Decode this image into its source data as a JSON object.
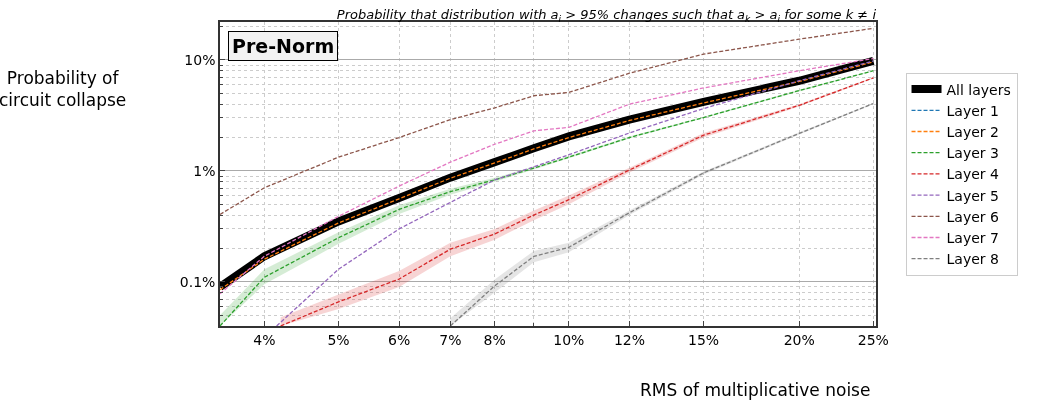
{
  "chart_data": {
    "type": "line",
    "title": "Probability that distribution with a$_{i}$ > 95% changes such that a$_{k}$ > a$_{i}$ for some k ≠ i",
    "xlabel": "RMS of multiplicative noise",
    "ylabel": "Probability of\ncircuit collapse",
    "annotations": [
      "Pre-Norm"
    ],
    "log": "xy",
    "xlim": [
      3.5,
      25.2
    ],
    "ylim": [
      0.04,
      22
    ],
    "xticks": [
      {
        "value": 4,
        "label": "4%"
      },
      {
        "value": 5,
        "label": "5%"
      },
      {
        "value": 6,
        "label": "6%"
      },
      {
        "value": 7,
        "label": "7%"
      },
      {
        "value": 8,
        "label": "8%"
      },
      {
        "value": 10,
        "label": "10%"
      },
      {
        "value": 12,
        "label": "12%"
      },
      {
        "value": 15,
        "label": "15%"
      },
      {
        "value": 20,
        "label": "20%"
      },
      {
        "value": 25,
        "label": "25%"
      }
    ],
    "yticks": [
      {
        "value": 0.1,
        "label": "0.1%"
      },
      {
        "value": 1,
        "label": "1%"
      },
      {
        "value": 10,
        "label": "10%"
      }
    ],
    "grid": true,
    "legend": "right",
    "marker": "none",
    "x": [
      3.5,
      4,
      5,
      6,
      7,
      8,
      9,
      10,
      12,
      15,
      20,
      25
    ],
    "series": [
      {
        "name": "All layers",
        "color": "#000000",
        "line_style": "solid",
        "values": [
          0.09,
          0.17,
          0.35,
          0.57,
          0.87,
          1.2,
          1.6,
          2.05,
          2.9,
          4.2,
          6.5,
          9.8
        ]
      },
      {
        "name": "Layer 1",
        "color": "#1f77b4",
        "line_style": "dashed",
        "values": [
          null,
          null,
          null,
          null,
          null,
          null,
          null,
          null,
          null,
          null,
          null,
          null
        ]
      },
      {
        "name": "Layer 2",
        "color": "#ff7f0e",
        "line_style": "dashed",
        "values": [
          0.085,
          0.16,
          0.34,
          0.56,
          0.86,
          1.18,
          1.58,
          2.0,
          2.85,
          4.1,
          6.4,
          9.6
        ]
      },
      {
        "name": "Layer 3",
        "color": "#2ca02c",
        "line_style": "dashed",
        "values": [
          0.04,
          0.11,
          0.25,
          0.45,
          0.65,
          0.83,
          1.06,
          1.33,
          2.0,
          3.03,
          5.3,
          8.0
        ],
        "lower": [
          0.04,
          0.095,
          0.22,
          0.41,
          0.61,
          0.8,
          1.03,
          1.3,
          1.96,
          2.98,
          5.2,
          7.9
        ],
        "upper": [
          0.05,
          0.13,
          0.28,
          0.49,
          0.69,
          0.87,
          1.09,
          1.36,
          2.04,
          3.08,
          5.4,
          8.1
        ]
      },
      {
        "name": "Layer 4",
        "color": "#d62728",
        "line_style": "dashed",
        "x": [
          4.2,
          5,
          6,
          7,
          8,
          9,
          10,
          12,
          15,
          20,
          25
        ],
        "values": [
          0.04,
          0.066,
          0.106,
          0.197,
          0.27,
          0.4,
          0.55,
          1.02,
          2.1,
          3.9,
          6.9
        ],
        "lower": [
          0.04,
          0.057,
          0.09,
          0.17,
          0.24,
          0.36,
          0.5,
          0.97,
          2.0,
          3.8,
          6.8
        ],
        "upper": [
          0.048,
          0.077,
          0.125,
          0.225,
          0.3,
          0.44,
          0.6,
          1.07,
          2.2,
          4.0,
          7.0
        ]
      },
      {
        "name": "Layer 5",
        "color": "#9467bd",
        "line_style": "dashed",
        "x": [
          4.15,
          5,
          6,
          7,
          8,
          9,
          10,
          12,
          15,
          20,
          25
        ],
        "values": [
          0.04,
          0.13,
          0.3,
          0.52,
          0.83,
          1.09,
          1.4,
          2.2,
          3.65,
          6.5,
          9.8
        ]
      },
      {
        "name": "Layer 6",
        "color": "#8c564b",
        "line_style": "dashed",
        "values": [
          0.405,
          0.705,
          1.33,
          2.0,
          2.9,
          3.7,
          4.76,
          5.1,
          7.6,
          11.3,
          15.4,
          19.3
        ]
      },
      {
        "name": "Layer 7",
        "color": "#e377c2",
        "line_style": "dashed",
        "values": [
          0.078,
          0.17,
          0.39,
          0.73,
          1.2,
          1.74,
          2.3,
          2.47,
          4.0,
          5.6,
          8.0,
          10.3
        ]
      },
      {
        "name": "Layer 8",
        "color": "#7f7f7f",
        "line_style": "dashed",
        "x": [
          7,
          8,
          9,
          10,
          12,
          15,
          20,
          25
        ],
        "values": [
          0.04,
          0.092,
          0.17,
          0.205,
          0.42,
          0.96,
          2.18,
          4.05
        ],
        "lower": [
          0.04,
          0.08,
          0.15,
          0.185,
          0.4,
          0.93,
          2.13,
          4.0
        ],
        "upper": [
          0.047,
          0.105,
          0.19,
          0.225,
          0.44,
          0.99,
          2.23,
          4.1
        ]
      }
    ]
  }
}
